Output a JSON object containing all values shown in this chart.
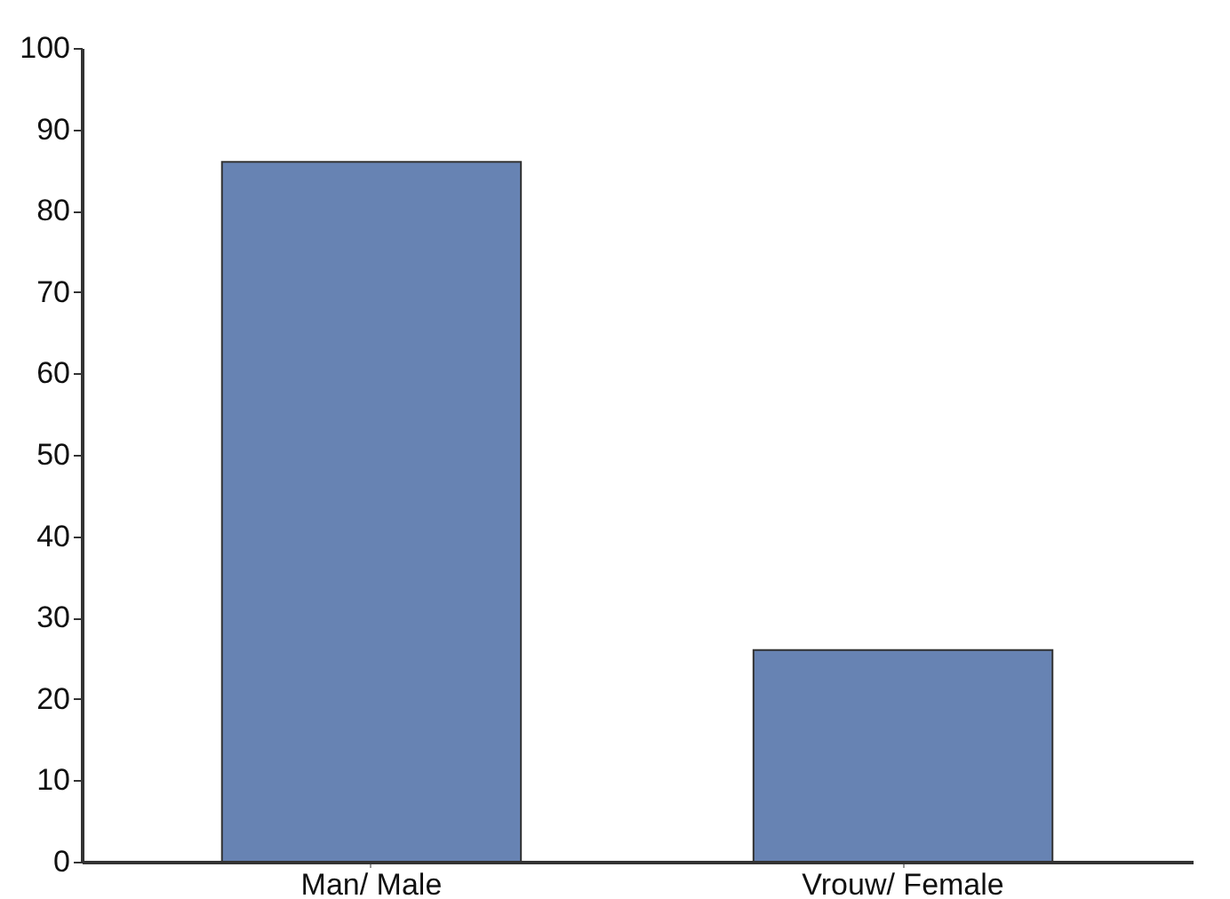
{
  "chart_data": {
    "type": "bar",
    "categories": [
      "Man/ Male",
      "Vrouw/ Female"
    ],
    "values": [
      86,
      26
    ],
    "color": "#6783b3",
    "ylim": [
      0,
      100
    ],
    "yticks": [
      0,
      10,
      20,
      30,
      40,
      50,
      60,
      70,
      80,
      90,
      100
    ],
    "grid": false
  }
}
